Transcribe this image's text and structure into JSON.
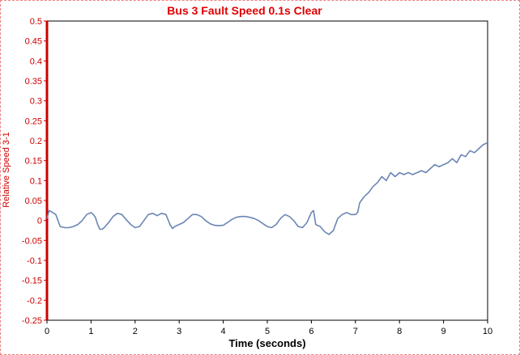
{
  "chart_data": {
    "type": "line",
    "title": "Bus 3 Fault Speed 0.1s Clear",
    "xlabel": "Time (seconds)",
    "ylabel": "Relative Speed 3-1",
    "xlim": [
      0,
      10
    ],
    "ylim": [
      -0.25,
      0.5
    ],
    "x_ticks": [
      "0",
      "1",
      "2",
      "3",
      "4",
      "5",
      "6",
      "7",
      "8",
      "9",
      "10"
    ],
    "y_ticks": [
      "0.5",
      "0.45",
      "0.4",
      "0.35",
      "0.3",
      "0.25",
      "0.2",
      "0.15",
      "0.1",
      "0.05",
      "0",
      "-0.05",
      "-0.1",
      "-0.15",
      "-0.2",
      "-0.25"
    ],
    "grid": false,
    "colors": {
      "title": "#e00000",
      "axis": "#cc0000",
      "line": "#6a86b4",
      "frame": "#f08080"
    },
    "series": [
      {
        "x": [
          0,
          0.05,
          0.1,
          0.2,
          0.3,
          0.4,
          0.5,
          0.6,
          0.7,
          0.8,
          0.9,
          1.0,
          1.05,
          1.1,
          1.15,
          1.2,
          1.25,
          1.3,
          1.4,
          1.5,
          1.6,
          1.7,
          1.8,
          1.9,
          2.0,
          2.1,
          2.2,
          2.3,
          2.4,
          2.5,
          2.6,
          2.7,
          2.8,
          2.85,
          2.9,
          3.0,
          3.1,
          3.2,
          3.3,
          3.4,
          3.5,
          3.6,
          3.7,
          3.8,
          3.9,
          4.0,
          4.1,
          4.2,
          4.3,
          4.4,
          4.5,
          4.6,
          4.7,
          4.8,
          4.9,
          5.0,
          5.1,
          5.2,
          5.3,
          5.4,
          5.5,
          5.6,
          5.7,
          5.8,
          5.9,
          6.0,
          6.05,
          6.1,
          6.2,
          6.3,
          6.4,
          6.5,
          6.6,
          6.7,
          6.8,
          6.9,
          7.0,
          7.05,
          7.1,
          7.2,
          7.3,
          7.4,
          7.5,
          7.6,
          7.7,
          7.8,
          7.9,
          8.0,
          8.1,
          8.2,
          8.3,
          8.4,
          8.5,
          8.6,
          8.7,
          8.8,
          8.9,
          9.0,
          9.1,
          9.2,
          9.3,
          9.4,
          9.5,
          9.6,
          9.7,
          9.8,
          9.9,
          10.0
        ],
        "values": [
          0.005,
          0.025,
          0.022,
          0.015,
          -0.015,
          -0.018,
          -0.018,
          -0.015,
          -0.01,
          0.0,
          0.015,
          0.02,
          0.015,
          0.008,
          -0.01,
          -0.022,
          -0.022,
          -0.018,
          -0.005,
          0.01,
          0.018,
          0.015,
          0.002,
          -0.01,
          -0.018,
          -0.015,
          0.0,
          0.015,
          0.018,
          0.012,
          0.018,
          0.015,
          -0.012,
          -0.02,
          -0.015,
          -0.01,
          -0.005,
          0.005,
          0.015,
          0.015,
          0.01,
          0.0,
          -0.008,
          -0.012,
          -0.013,
          -0.012,
          -0.005,
          0.003,
          0.008,
          0.01,
          0.01,
          0.008,
          0.005,
          0.0,
          -0.008,
          -0.015,
          -0.018,
          -0.01,
          0.005,
          0.015,
          0.01,
          0.0,
          -0.015,
          -0.018,
          -0.005,
          0.02,
          0.025,
          -0.01,
          -0.015,
          -0.028,
          -0.035,
          -0.025,
          0.005,
          0.015,
          0.02,
          0.015,
          0.015,
          0.02,
          0.045,
          0.06,
          0.07,
          0.085,
          0.095,
          0.11,
          0.1,
          0.12,
          0.11,
          0.12,
          0.115,
          0.12,
          0.115,
          0.12,
          0.125,
          0.12,
          0.13,
          0.14,
          0.135,
          0.14,
          0.145,
          0.155,
          0.145,
          0.165,
          0.16,
          0.175,
          0.17,
          0.18,
          0.19,
          0.195
        ]
      }
    ]
  }
}
